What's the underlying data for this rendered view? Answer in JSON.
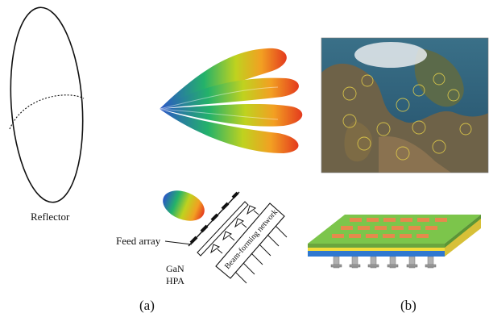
{
  "labels": {
    "reflector": "Reflector",
    "feed_array": "Feed array",
    "hpa_line1": "GaN",
    "hpa_line2": "HPA",
    "beam_forming": "Beam-forming network",
    "panel_a": "(a)",
    "panel_b": "(b)"
  },
  "colors": {
    "beam_start": "#2b55c8",
    "beam_mid1": "#24b26a",
    "beam_mid2": "#bfd21f",
    "beam_mid3": "#f2a022",
    "beam_end": "#e43a1e",
    "board_top": "#7cc54b",
    "board_orange": "#e58a4c",
    "board_yellow": "#f3dc3a",
    "board_blue": "#2f78d0",
    "map_sea": "#2d5e78",
    "map_land": "#7a6a4a"
  },
  "icons": [
    "reflector-icon",
    "beam-pattern-icon",
    "feed-array-icon",
    "satellite-map-icon",
    "antenna-board-icon"
  ]
}
